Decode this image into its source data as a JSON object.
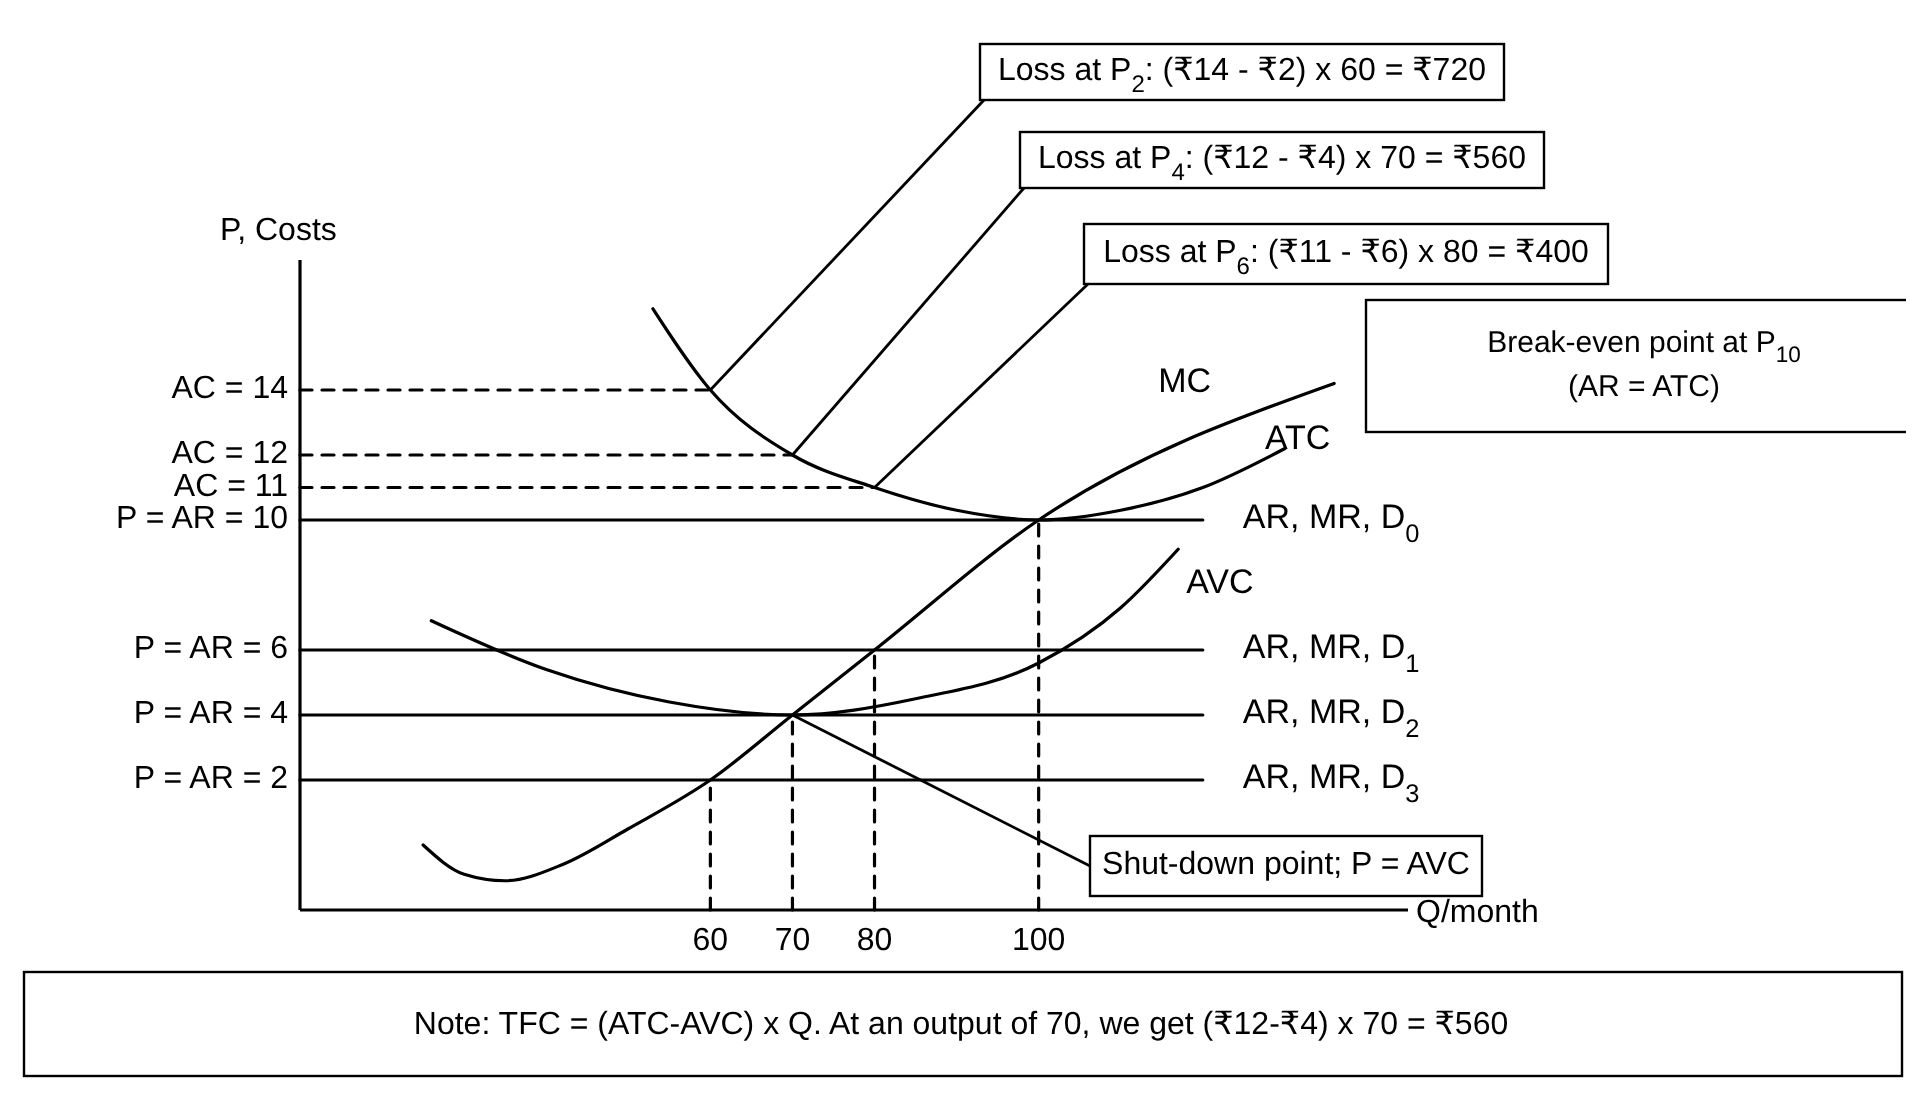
{
  "chart_data": {
    "type": "line",
    "ylabel": "P, Costs",
    "xlabel": "Q/month",
    "xlim": [
      10,
      145
    ],
    "ylim": [
      -2,
      18
    ],
    "xticks": [
      60,
      70,
      80,
      100
    ],
    "yticks": [
      {
        "value": 14,
        "label": "AC = 14"
      },
      {
        "value": 12,
        "label": "AC = 12"
      },
      {
        "value": 11,
        "label": "AC = 11"
      },
      {
        "value": 10,
        "label": "P = AR = 10"
      },
      {
        "value": 6,
        "label": "P = AR = 6"
      },
      {
        "value": 4,
        "label": "P = AR = 4"
      },
      {
        "value": 2,
        "label": "P = AR = 2"
      }
    ],
    "grid": false,
    "series": [
      {
        "name": "MC",
        "color": "#000000",
        "line_style": "solid",
        "x": [
          25,
          30,
          35,
          42,
          50,
          60,
          70,
          80,
          100,
          136
        ],
        "values": [
          0,
          -0.9,
          -1.1,
          -0.6,
          0.5,
          2,
          4,
          6,
          10,
          14.2
        ]
      },
      {
        "name": "ATC",
        "color": "#000000",
        "line_style": "solid",
        "x": [
          53,
          60,
          70,
          80,
          90,
          100,
          110,
          120,
          130
        ],
        "values": [
          16.5,
          14,
          12,
          11,
          10.3,
          10,
          10.3,
          11,
          12.2
        ]
      },
      {
        "name": "AVC",
        "color": "#000000",
        "line_style": "solid",
        "x": [
          26,
          40,
          55,
          70,
          85,
          100,
          110,
          117
        ],
        "values": [
          6.9,
          5.4,
          4.4,
          4,
          4.5,
          5.6,
          7.3,
          9.1
        ]
      },
      {
        "name": "AR, MR, D$_{0}$",
        "color": "#000000",
        "line_style": "solid",
        "x": [
          10,
          120
        ],
        "values": [
          10,
          10
        ]
      },
      {
        "name": "AR, MR, D$_{1}$",
        "color": "#000000",
        "line_style": "solid",
        "x": [
          10,
          120
        ],
        "values": [
          6,
          6
        ]
      },
      {
        "name": "AR, MR, D$_{2}$",
        "color": "#000000",
        "line_style": "solid",
        "x": [
          10,
          120
        ],
        "values": [
          4,
          4
        ]
      },
      {
        "name": "AR, MR, D$_{3}$",
        "color": "#000000",
        "line_style": "solid",
        "x": [
          10,
          120
        ],
        "values": [
          2,
          2
        ]
      },
      {
        "color": "#000000",
        "line_style": "dashed",
        "x": [
          10,
          60
        ],
        "values": [
          14,
          14
        ]
      },
      {
        "color": "#000000",
        "line_style": "dashed",
        "x": [
          10,
          70
        ],
        "values": [
          12,
          12
        ]
      },
      {
        "color": "#000000",
        "line_style": "dashed",
        "x": [
          10,
          80
        ],
        "values": [
          11,
          11
        ]
      },
      {
        "color": "#000000",
        "line_style": "dashed",
        "x": [
          60,
          60
        ],
        "values": [
          -2,
          2
        ]
      },
      {
        "color": "#000000",
        "line_style": "dashed",
        "x": [
          70,
          70
        ],
        "values": [
          -2,
          4
        ]
      },
      {
        "color": "#000000",
        "line_style": "dashed",
        "x": [
          80,
          80
        ],
        "values": [
          -2,
          6
        ]
      },
      {
        "color": "#000000",
        "line_style": "dashed",
        "x": [
          100,
          100
        ],
        "values": [
          -2,
          10
        ]
      }
    ],
    "annotations": [
      {
        "text": "Loss at P$_{2}$: (₹14 - ₹2) x 60 = ₹720",
        "x": 60,
        "y": 14
      },
      {
        "text": "Loss at P$_{4}$: (₹12 - ₹4) x 70 = ₹560",
        "x": 70,
        "y": 12
      },
      {
        "text": "Loss at P$_{6}$: (₹11 - ₹6) x 80 = ₹400",
        "x": 80,
        "y": 11
      },
      "Break-even point at P$_{10}$\n(AR = ATC)",
      {
        "text": "Shut-down point; P = AVC",
        "x": 70,
        "y": 4
      },
      "Note: TFC = (ATC-AVC) x Q. At an output of 70, we get (₹12-₹4) x 70 = ₹560"
    ]
  }
}
